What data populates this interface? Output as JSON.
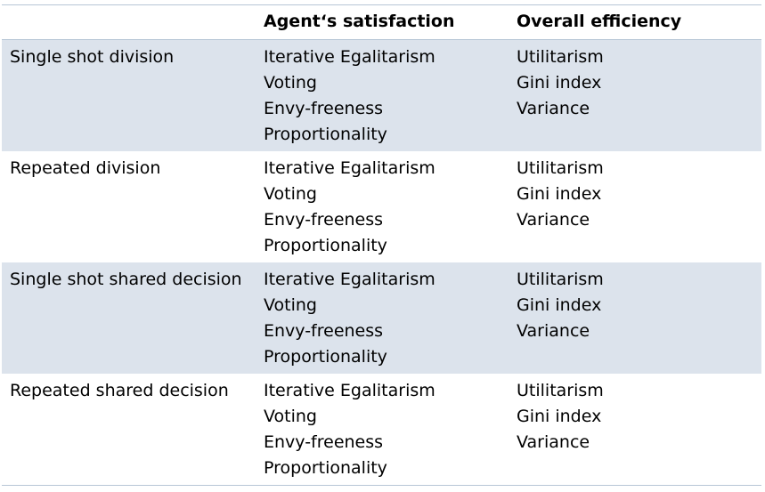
{
  "header": {
    "col1": "",
    "col2": "Agent‘s satisfaction",
    "col3": "Overall efficiency"
  },
  "rows": [
    {
      "label": "Single shot division",
      "satisfaction": [
        "Iterative Egalitarism",
        "Voting",
        "Envy-freeness",
        "Proportionality"
      ],
      "efficiency": [
        "Utilitarism",
        "Gini index",
        "Variance"
      ]
    },
    {
      "label": "Repeated division",
      "satisfaction": [
        "Iterative Egalitarism",
        "Voting",
        "Envy-freeness",
        "Proportionality"
      ],
      "efficiency": [
        "Utilitarism",
        "Gini index",
        "Variance"
      ]
    },
    {
      "label": "Single shot shared decision",
      "satisfaction": [
        "Iterative Egalitarism",
        "Voting",
        "Envy-freeness",
        "Proportionality"
      ],
      "efficiency": [
        "Utilitarism",
        "Gini index",
        "Variance"
      ]
    },
    {
      "label": "Repeated shared decision",
      "satisfaction": [
        "Iterative Egalitarism",
        "Voting",
        "Envy-freeness",
        "Proportionality"
      ],
      "efficiency": [
        "Utilitarism",
        "Gini index",
        "Variance"
      ]
    }
  ],
  "colors": {
    "shaded_row": "#dce3ec",
    "rule": "#b7c6d6"
  }
}
